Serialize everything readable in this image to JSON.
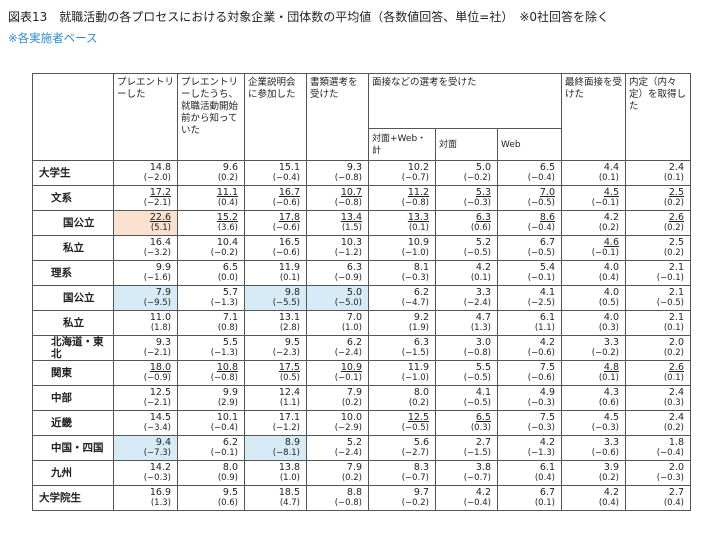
{
  "header": {
    "title": "図表13　就職活動の各プロセスにおける対象企業・団体数の平均値（各数値回答、単位=社）　※0社回答を除く",
    "note": "※各実施者ベース"
  },
  "table": {
    "columns": [
      "プレエントリーした",
      "プレエントリーしたうち、就職活動開始前から知っていた",
      "企業説明会に参加した",
      "書類選考を受けた",
      "最終面接を受けた",
      "内定（内々定）を取得した"
    ],
    "interview_group": "面接などの選考を受けた",
    "interview_sub": [
      "対面+Web・計",
      "対面",
      "Web"
    ],
    "highlight_colors": {
      "orange": "#fbe1cf",
      "blue": "#d6ebf5"
    },
    "rows": [
      {
        "label": "大学生",
        "level": 0,
        "values": [
          "14.8",
          "9.6",
          "15.1",
          "9.3",
          "10.2",
          "5.0",
          "6.5",
          "4.4",
          "2.4"
        ],
        "diffs": [
          "(−2.0)",
          "(0.2)",
          "(−0.4)",
          "(−0.8)",
          "(−0.7)",
          "(−0.2)",
          "(−0.4)",
          "(0.1)",
          "(0.1)"
        ]
      },
      {
        "label": "文系",
        "level": 1,
        "values": [
          "17.2",
          "11.1",
          "16.7",
          "10.7",
          "11.2",
          "5.3",
          "7.0",
          "4.5",
          "2.5"
        ],
        "diffs": [
          "(−2.1)",
          "(0.4)",
          "(−0.6)",
          "(−0.8)",
          "(−0.8)",
          "(−0.3)",
          "(−0.5)",
          "(−0.1)",
          "(0.2)"
        ],
        "underlined": [
          0,
          1,
          2,
          3,
          4,
          5,
          6,
          7,
          8
        ]
      },
      {
        "label": "国公立",
        "level": 2,
        "values": [
          "22.6",
          "15.2",
          "17.8",
          "13.4",
          "13.3",
          "6.3",
          "8.6",
          "4.2",
          "2.6"
        ],
        "diffs": [
          "(5.1)",
          "(3.6)",
          "(−0.6)",
          "(1.5)",
          "(0.1)",
          "(0.6)",
          "(−0.4)",
          "(0.2)",
          "(0.2)"
        ],
        "underlined": [
          0,
          1,
          2,
          3,
          4,
          5,
          6,
          8
        ],
        "highlighted": [
          0
        ],
        "highlight": "orange"
      },
      {
        "label": "私立",
        "level": 2,
        "values": [
          "16.4",
          "10.4",
          "16.5",
          "10.3",
          "10.9",
          "5.2",
          "6.7",
          "4.6",
          "2.5"
        ],
        "diffs": [
          "(−3.2)",
          "(−0.2)",
          "(−0.6)",
          "(−1.2)",
          "(−1.0)",
          "(−0.5)",
          "(−0.5)",
          "(−0.1)",
          "(0.2)"
        ],
        "underlined": [
          7
        ]
      },
      {
        "label": "理系",
        "level": 1,
        "values": [
          "9.9",
          "6.5",
          "11.9",
          "6.3",
          "8.1",
          "4.2",
          "5.4",
          "4.0",
          "2.1"
        ],
        "diffs": [
          "(−1.6)",
          "(0.0)",
          "(0.1)",
          "(−0.9)",
          "(−0.3)",
          "(0.1)",
          "(−0.1)",
          "(0.4)",
          "(−0.1)"
        ]
      },
      {
        "label": "国公立",
        "level": 2,
        "values": [
          "7.9",
          "5.7",
          "9.8",
          "5.0",
          "6.2",
          "3.3",
          "4.1",
          "4.0",
          "2.1"
        ],
        "diffs": [
          "(−9.5)",
          "(−1.3)",
          "(−5.5)",
          "(−5.0)",
          "(−4.7)",
          "(−2.4)",
          "(−2.5)",
          "(0.5)",
          "(−0.5)"
        ],
        "highlighted": [
          0,
          2,
          3
        ],
        "highlight": "blue"
      },
      {
        "label": "私立",
        "level": 2,
        "values": [
          "11.0",
          "7.1",
          "13.1",
          "7.0",
          "9.2",
          "4.7",
          "6.1",
          "4.0",
          "2.1"
        ],
        "diffs": [
          "(1.8)",
          "(0.8)",
          "(2.8)",
          "(1.0)",
          "(1.9)",
          "(1.3)",
          "(1.1)",
          "(0.3)",
          "(0.1)"
        ]
      },
      {
        "label": "北海道・東北",
        "level": 1,
        "values": [
          "9.3",
          "5.5",
          "9.5",
          "6.2",
          "6.3",
          "3.0",
          "4.2",
          "3.3",
          "2.0"
        ],
        "diffs": [
          "(−2.1)",
          "(−1.3)",
          "(−2.3)",
          "(−2.4)",
          "(−1.5)",
          "(−0.8)",
          "(−0.6)",
          "(−0.2)",
          "(0.2)"
        ]
      },
      {
        "label": "関東",
        "level": 1,
        "values": [
          "18.0",
          "10.8",
          "17.5",
          "10.9",
          "11.9",
          "5.5",
          "7.5",
          "4.8",
          "2.6"
        ],
        "diffs": [
          "(−0.9)",
          "(−0.8)",
          "(0.5)",
          "(−0.1)",
          "(−1.0)",
          "(−0.5)",
          "(−0.6)",
          "(0.1)",
          "(0.1)"
        ],
        "underlined": [
          0,
          1,
          2,
          3,
          7,
          8
        ]
      },
      {
        "label": "中部",
        "level": 1,
        "values": [
          "12.5",
          "9.9",
          "12.4",
          "7.9",
          "8.0",
          "4.1",
          "4.9",
          "4.3",
          "2.4"
        ],
        "diffs": [
          "(−2.1)",
          "(2.9)",
          "(1.1)",
          "(0.2)",
          "(0.2)",
          "(−0.5)",
          "(−0.3)",
          "(0.6)",
          "(0.3)"
        ]
      },
      {
        "label": "近畿",
        "level": 1,
        "values": [
          "14.5",
          "10.1",
          "17.1",
          "10.0",
          "12.5",
          "6.5",
          "7.5",
          "4.5",
          "2.4"
        ],
        "diffs": [
          "(−3.4)",
          "(−0.4)",
          "(−1.2)",
          "(−2.9)",
          "(−0.5)",
          "(0.3)",
          "(−0.3)",
          "(−0.3)",
          "(0.2)"
        ],
        "underlined": [
          4,
          5
        ]
      },
      {
        "label": "中国・四国",
        "level": 1,
        "values": [
          "9.4",
          "6.2",
          "8.9",
          "5.2",
          "5.6",
          "2.7",
          "4.2",
          "3.3",
          "1.8"
        ],
        "diffs": [
          "(−7.3)",
          "(−0.1)",
          "(−8.1)",
          "(−2.4)",
          "(−2.7)",
          "(−1.5)",
          "(−1.3)",
          "(−0.6)",
          "(−0.4)"
        ],
        "highlighted": [
          0,
          2
        ],
        "highlight": "blue"
      },
      {
        "label": "九州",
        "level": 1,
        "values": [
          "14.2",
          "8.0",
          "13.8",
          "7.9",
          "8.3",
          "3.8",
          "6.1",
          "3.9",
          "2.0"
        ],
        "diffs": [
          "(−0.3)",
          "(0.9)",
          "(1.0)",
          "(0.2)",
          "(−0.7)",
          "(−0.7)",
          "(0.4)",
          "(0.2)",
          "(−0.3)"
        ]
      },
      {
        "label": "大学院生",
        "level": 0,
        "values": [
          "16.9",
          "9.5",
          "18.5",
          "8.8",
          "9.7",
          "4.2",
          "6.7",
          "4.2",
          "2.7"
        ],
        "diffs": [
          "(1.3)",
          "(0.6)",
          "(4.7)",
          "(−0.8)",
          "(−0.2)",
          "(−0.4)",
          "(0.1)",
          "(0.4)",
          "(0.4)"
        ]
      }
    ]
  }
}
